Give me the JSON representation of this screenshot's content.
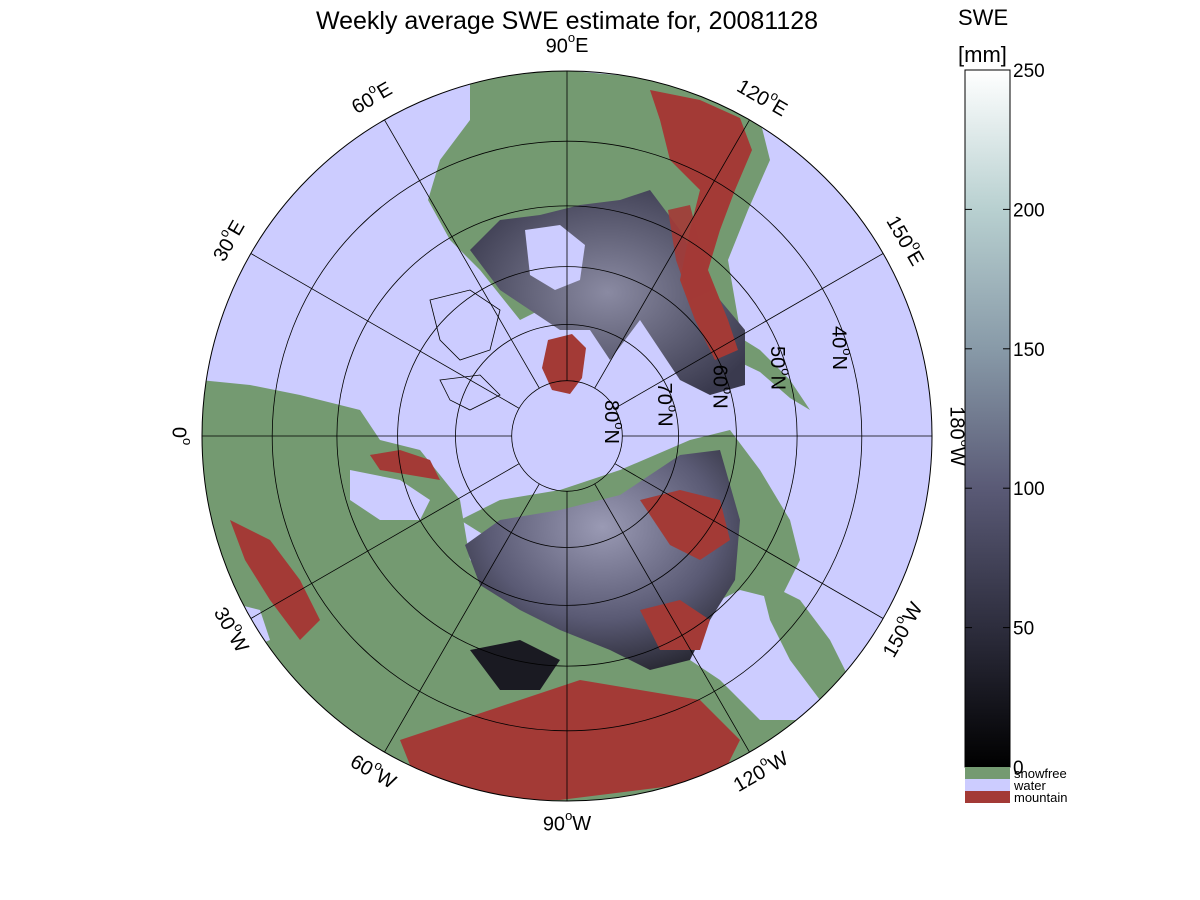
{
  "title": "Weekly average SWE estimate for, 20081128",
  "colors": {
    "water": "#ccccff",
    "snowfree": "#749a71",
    "mountain": "#a33a36",
    "snow_low": "#1a1a22",
    "snow_mid": "#4a4a66",
    "snow_high": "#8c8ca8",
    "graticule": "#000000"
  },
  "map": {
    "projection": "north polar stereographic",
    "center": "North Pole",
    "outer_latitude": 30,
    "longitude_labels": [
      {
        "text": "90",
        "unit": "W",
        "lon": -90
      },
      {
        "text": "60",
        "unit": "W",
        "lon": -60
      },
      {
        "text": "30",
        "unit": "W",
        "lon": -30
      },
      {
        "text": "0",
        "unit": "",
        "lon": 0
      },
      {
        "text": "30",
        "unit": "E",
        "lon": 30
      },
      {
        "text": "60",
        "unit": "E",
        "lon": 60
      },
      {
        "text": "90",
        "unit": "E",
        "lon": 90
      },
      {
        "text": "120",
        "unit": "E",
        "lon": 120
      },
      {
        "text": "150",
        "unit": "E",
        "lon": 150
      },
      {
        "text": "180",
        "unit": "W",
        "lon": 180
      },
      {
        "text": "150",
        "unit": "W",
        "lon": -150
      },
      {
        "text": "120",
        "unit": "W",
        "lon": -120
      }
    ],
    "latitude_labels": [
      {
        "text": "80",
        "unit": "N",
        "lat": 80
      },
      {
        "text": "70",
        "unit": "N",
        "lat": 70
      },
      {
        "text": "60",
        "unit": "N",
        "lat": 60
      },
      {
        "text": "50",
        "unit": "N",
        "lat": 50
      },
      {
        "text": "40",
        "unit": "N",
        "lat": 40
      }
    ]
  },
  "colorbar": {
    "label_line1": "SWE",
    "label_line2": "[mm]",
    "min": 0,
    "max": 250,
    "ticks": [
      "0",
      "50",
      "100",
      "150",
      "200",
      "250"
    ],
    "categories": [
      {
        "label": "snowfree",
        "color": "#749a71"
      },
      {
        "label": "water",
        "color": "#ccccff"
      },
      {
        "label": "mountain",
        "color": "#a33a36"
      }
    ]
  }
}
